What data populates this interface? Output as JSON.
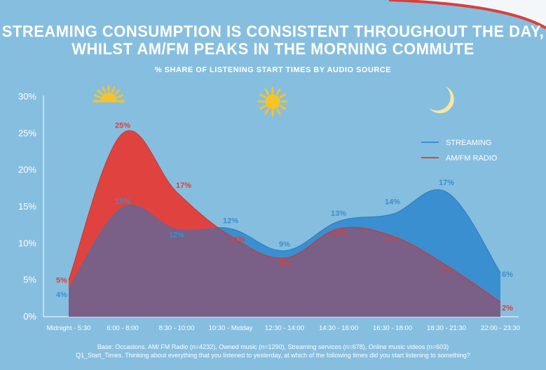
{
  "title_line1": "STREAMING CONSUMPTION IS CONSISTENT THROUGHOUT THE DAY,",
  "title_line2": "WHILST AM/FM PEAKS IN THE MORNING COMMUTE",
  "subtitle": "% SHARE OF LISTENING START TIMES BY AUDIO SOURCE",
  "footnote_line1": "Base: Occasions. AM/ FM Radio (n=4232), Owned music (n=1290), Streaming services (n=678), Online music videos (n=603)",
  "footnote_line2": "Q1_Start_Times. Thinking about everything that you listened to yesterday, at which of the following times did you start listening to something?",
  "colors": {
    "background": "#86bedf",
    "streaming": "#3a8fd0",
    "amfm": "#e0433f",
    "overlap": "#7a5f86",
    "sun": "#f5c32c",
    "moon": "#f7e7a0",
    "accent_red": "#d9403c"
  },
  "icons": [
    "sunrise-icon",
    "sun-icon",
    "moon-icon"
  ],
  "chart_data": {
    "type": "area",
    "categories": [
      "Midnight - 5:30",
      "6:00 - 8:00",
      "8:30 - 10:00",
      "10:30 - Midday",
      "12:30 - 14:00",
      "14:30 - 16:00",
      "16:30 - 18:00",
      "18:30 - 21:30",
      "22:00 - 23:30"
    ],
    "series": [
      {
        "name": "STREAMING",
        "values": [
          4,
          15,
          12,
          12,
          9,
          13,
          14,
          17,
          6
        ],
        "labels": [
          "4%",
          "15%",
          "12%",
          "12%",
          "9%",
          "13%",
          "14%",
          "17%",
          "6%"
        ]
      },
      {
        "name": "AM/FM RADIO",
        "values": [
          5,
          25,
          17,
          11,
          8,
          12,
          11,
          7,
          2
        ],
        "labels": [
          "5%",
          "25%",
          "17%",
          "11%",
          "8%",
          "12%",
          "11%",
          "7%",
          "2%"
        ]
      }
    ],
    "y_ticks": [
      "0%",
      "5%",
      "10%",
      "15%",
      "20%",
      "25%",
      "30%"
    ],
    "ylim": [
      0,
      30
    ],
    "legend_position": "right",
    "grid": false
  }
}
